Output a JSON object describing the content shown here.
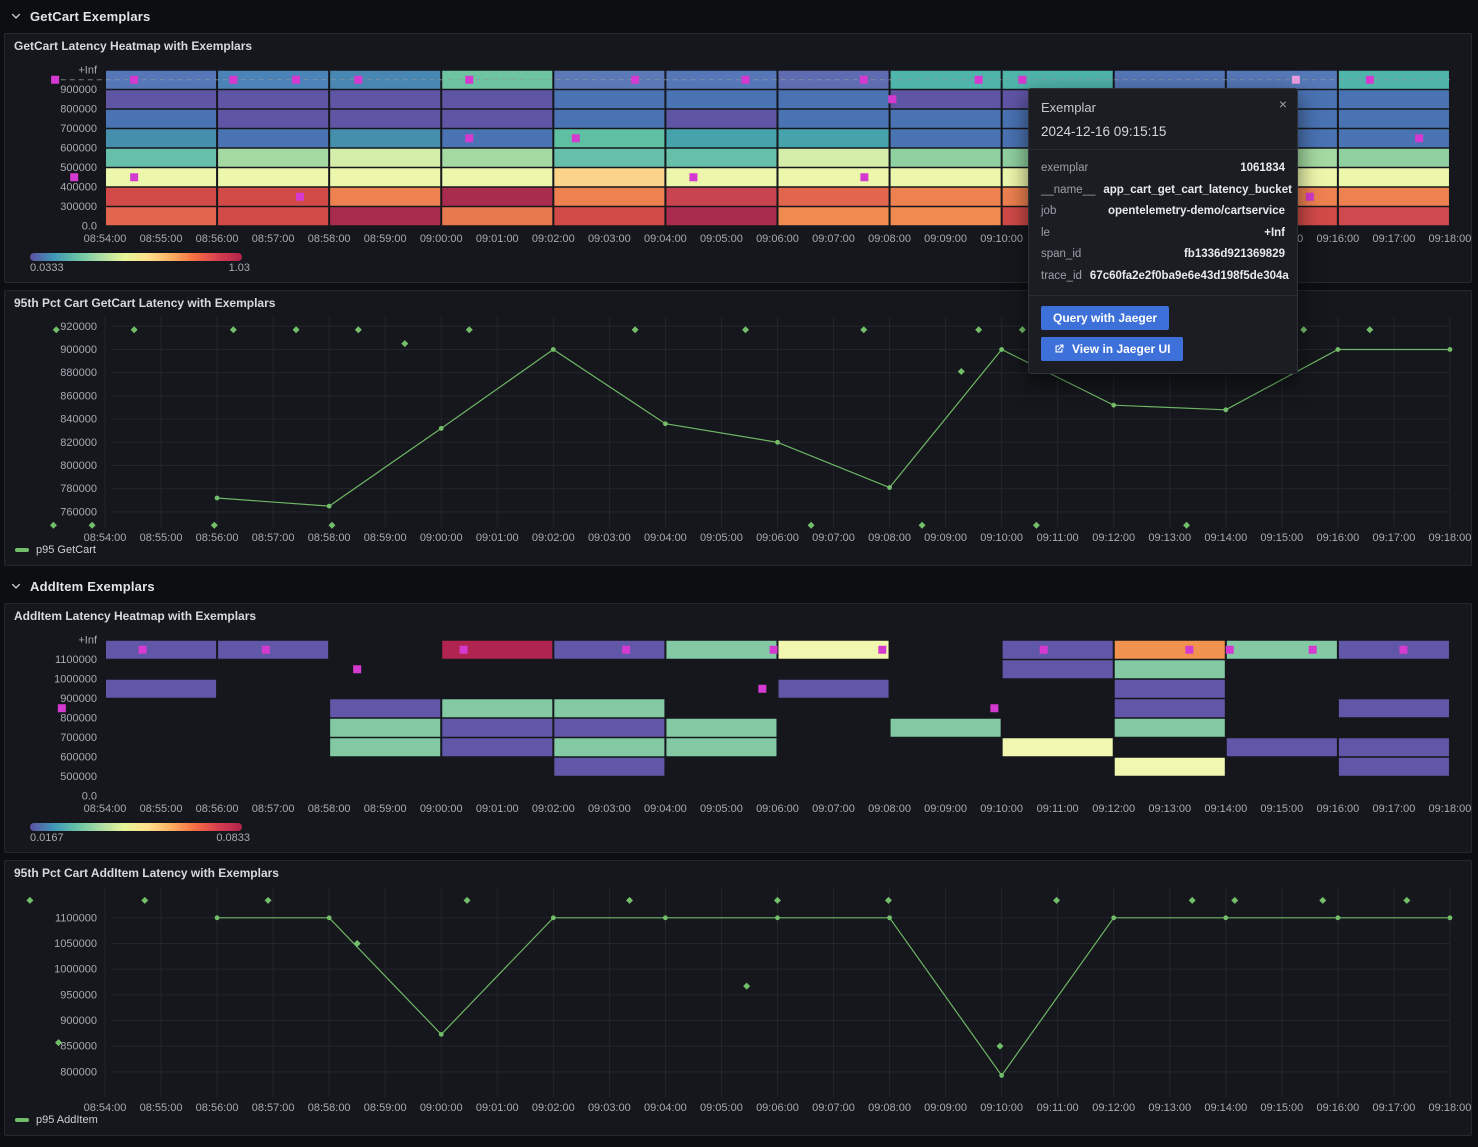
{
  "colors": {
    "accent_blue": "#3d71d9",
    "series_green": "#73bf69",
    "exemplar_magenta": "#d53ad0",
    "exemplar_selected": "#eb9fe4",
    "grid": "#23262d",
    "dashed_line": "#9299a3"
  },
  "sections": [
    {
      "title": "GetCart Exemplars"
    },
    {
      "title": "AddItem Exemplars"
    }
  ],
  "xticks": [
    "08:54:00",
    "08:55:00",
    "08:56:00",
    "08:57:00",
    "08:58:00",
    "08:59:00",
    "09:00:00",
    "09:01:00",
    "09:02:00",
    "09:03:00",
    "09:04:00",
    "09:05:00",
    "09:06:00",
    "09:07:00",
    "09:08:00",
    "09:09:00",
    "09:10:00",
    "09:11:00",
    "09:12:00",
    "09:13:00",
    "09:14:00",
    "09:15:00",
    "09:16:00",
    "09:17:00",
    "09:18:00"
  ],
  "tooltip": {
    "title": "Exemplar",
    "close": "×",
    "timestamp": "2024-12-16 09:15:15",
    "rows": [
      {
        "label": "exemplar",
        "value": "1061834"
      },
      {
        "label": "__name__",
        "value": "app_cart_get_cart_latency_bucket"
      },
      {
        "label": "job",
        "value": "opentelemetry-demo/cartservice"
      },
      {
        "label": "le",
        "value": "+Inf"
      },
      {
        "label": "span_id",
        "value": "fb1336d921369829"
      },
      {
        "label": "trace_id",
        "value": "67c60fa2e2f0ba9e6e43d198f5de304a"
      }
    ],
    "buttons": [
      {
        "label": "Query with Jaeger"
      },
      {
        "label": "View in Jaeger UI",
        "icon": "external-link-icon"
      }
    ]
  },
  "chart_data": [
    {
      "id": "hm-getcart",
      "type": "heatmap",
      "title": "GetCart Latency Heatmap with Exemplars",
      "y_tick_labels": [
        "+Inf",
        "900000",
        "800000",
        "700000",
        "600000",
        "500000",
        "400000",
        "300000",
        "0.0"
      ],
      "col_minutes": 2,
      "colorbar": {
        "min": "0.0333",
        "max": "1.03"
      },
      "cells": [
        [
          "#5577b8",
          "#4b82b8",
          "#4787b2",
          "#6dc4a0",
          "#5b79b6",
          "#5577b8",
          "#5f6cb2",
          "#4fb5ab",
          "#4fb5ab",
          "#5577b8",
          "#5578b8",
          "#4fb5ab"
        ],
        [
          "#5e55a5",
          "#5e55a5",
          "#5e55a5",
          "#5e55a5",
          "#4a73b3",
          "#4a73b3",
          "#4a73b3",
          "#5e55a5",
          "#5e55a5",
          "#5e55a5",
          "#4a73b3",
          "#4a73b3"
        ],
        [
          "#4a73b3",
          "#5e55a5",
          "#5e55a5",
          "#5e55a5",
          "#4a73b3",
          "#5e55a5",
          "#4a73b3",
          "#4a73b3",
          "#4a73b3",
          "#4a73b3",
          "#4a73b3",
          "#4a73b3"
        ],
        [
          "#458fad",
          "#4a73b3",
          "#458fad",
          "#4a73b3",
          "#5fc0a1",
          "#47a3ab",
          "#47a3ab",
          "#4a73b3",
          "#4a73b3",
          "#4a73b3",
          "#4a73b3",
          "#4a73b3"
        ],
        [
          "#66bfa8",
          "#a4d9a1",
          "#d4eda9",
          "#a4d9a1",
          "#66bfa8",
          "#66bfa8",
          "#d4eda9",
          "#8fd0a0",
          "#8fd0a0",
          "#a4d9a1",
          "#a4d9a1",
          "#8fd0a0"
        ],
        [
          "#edf7ac",
          "#edf7ac",
          "#edf7ac",
          "#edf7ac",
          "#fbd489",
          "#edf7ac",
          "#edf7ac",
          "#edf7ac",
          "#edf7ac",
          "#edf7ac",
          "#edf7ac",
          "#edf7ac"
        ],
        [
          "#d14a48",
          "#d14a48",
          "#ee8150",
          "#a92c4e",
          "#ee8150",
          "#c94451",
          "#e2654e",
          "#ee8150",
          "#ee8150",
          "#ee8150",
          "#ee8150",
          "#ee8150"
        ],
        [
          "#e2654e",
          "#d14a48",
          "#a92c4e",
          "#e8794e",
          "#d14a48",
          "#a92c4e",
          "#ef8b50",
          "#ef8b50",
          "#d14a48",
          "#d14a48",
          "#d14a48",
          "#ce4a4e"
        ]
      ],
      "dashed_row": 0.5,
      "exemplars": [
        {
          "t": -0.89,
          "r": 0.5
        },
        {
          "t": 0.52,
          "r": 0.5
        },
        {
          "t": 2.29,
          "r": 0.5
        },
        {
          "t": 3.41,
          "r": 0.5
        },
        {
          "t": 4.52,
          "r": 0.5
        },
        {
          "t": 6.5,
          "r": 0.5
        },
        {
          "t": 9.46,
          "r": 0.5
        },
        {
          "t": 11.43,
          "r": 0.5
        },
        {
          "t": 13.54,
          "r": 0.5
        },
        {
          "t": 15.59,
          "r": 0.5
        },
        {
          "t": 16.37,
          "r": 0.5
        },
        {
          "t": 22.57,
          "r": 0.5
        },
        {
          "t": -0.55,
          "r": 5.5
        },
        {
          "t": 0.52,
          "r": 5.5
        },
        {
          "t": 3.48,
          "r": 6.5
        },
        {
          "t": 6.5,
          "r": 3.5
        },
        {
          "t": 8.4,
          "r": 3.5
        },
        {
          "t": 10.5,
          "r": 5.5
        },
        {
          "t": 13.55,
          "r": 5.5
        },
        {
          "t": 14.05,
          "r": 1.5
        },
        {
          "t": 20.5,
          "r": 5.5
        },
        {
          "t": 21.5,
          "r": 6.5
        },
        {
          "t": 23.45,
          "r": 3.5
        }
      ],
      "selected_exemplar": {
        "t": 21.25,
        "r": 0.5
      }
    },
    {
      "id": "line-getcart",
      "type": "line",
      "title": "95th Pct Cart GetCart Latency with Exemplars",
      "legend": "p95 GetCart",
      "yticks": [
        760000,
        780000,
        800000,
        820000,
        840000,
        860000,
        880000,
        900000,
        920000
      ],
      "ylim": [
        747000,
        928000
      ],
      "x": [
        2,
        4,
        6,
        8,
        10,
        12,
        14,
        16,
        18,
        20,
        22,
        24
      ],
      "values": [
        772000,
        765000,
        832000,
        900000,
        836000,
        820000,
        781000,
        900000,
        852000,
        848000,
        900000,
        900000
      ],
      "exemplars": [
        {
          "t": -0.87,
          "v": 917000
        },
        {
          "t": 0.52,
          "v": 917000
        },
        {
          "t": 2.29,
          "v": 917000
        },
        {
          "t": 3.41,
          "v": 917000
        },
        {
          "t": 4.52,
          "v": 917000
        },
        {
          "t": 6.5,
          "v": 917000
        },
        {
          "t": 9.46,
          "v": 917000
        },
        {
          "t": 11.43,
          "v": 917000
        },
        {
          "t": 13.54,
          "v": 917000
        },
        {
          "t": 15.59,
          "v": 917000
        },
        {
          "t": 16.37,
          "v": 917000
        },
        {
          "t": 21.39,
          "v": 917000
        },
        {
          "t": 22.57,
          "v": 917000
        },
        {
          "t": 5.35,
          "v": 905000
        },
        {
          "t": 15.28,
          "v": 881000
        },
        {
          "t": -0.92,
          "v": 748500
        },
        {
          "t": -0.23,
          "v": 748500
        },
        {
          "t": 1.95,
          "v": 748500
        },
        {
          "t": 4.05,
          "v": 748500
        },
        {
          "t": 12.6,
          "v": 748500
        },
        {
          "t": 14.58,
          "v": 748500
        },
        {
          "t": 16.62,
          "v": 748500
        },
        {
          "t": 19.3,
          "v": 748500
        }
      ]
    },
    {
      "id": "hm-additem",
      "type": "heatmap",
      "title": "AddItem Latency Heatmap with Exemplars",
      "y_tick_labels": [
        "+Inf",
        "1100000",
        "1000000",
        "900000",
        "800000",
        "700000",
        "600000",
        "500000",
        "0.0"
      ],
      "col_minutes": 2,
      "colorbar": {
        "min": "0.0167",
        "max": "0.0833"
      },
      "cells": [
        [
          "#6157a8",
          "#6157a8",
          null,
          "#b02450",
          "#6157a8",
          "#82c9a4",
          "#f2f7b0",
          null,
          "#6157a8",
          "#f1934f",
          "#82c9a4",
          "#6157a8"
        ],
        [
          null,
          null,
          null,
          null,
          null,
          null,
          null,
          null,
          "#6157a8",
          "#82c9a4",
          null,
          null
        ],
        [
          "#6157a8",
          null,
          null,
          null,
          null,
          null,
          "#6157a8",
          null,
          null,
          "#6157a8",
          null,
          null
        ],
        [
          null,
          null,
          "#6157a8",
          "#82c9a4",
          "#82c9a4",
          null,
          null,
          null,
          null,
          "#6157a8",
          null,
          "#6157a8"
        ],
        [
          null,
          null,
          "#82c9a4",
          "#6157a8",
          "#6157a8",
          "#82c9a4",
          null,
          "#82c9a4",
          null,
          "#82c9a4",
          null,
          null
        ],
        [
          null,
          null,
          "#82c9a4",
          "#6157a8",
          "#82c9a4",
          "#82c9a4",
          null,
          null,
          "#f2f7b0",
          null,
          "#6157a8",
          "#6157a8"
        ],
        [
          null,
          null,
          null,
          null,
          "#6157a8",
          null,
          null,
          null,
          null,
          "#f2f7b0",
          null,
          "#6157a8"
        ],
        [
          null,
          null,
          null,
          null,
          null,
          null,
          null,
          null,
          null,
          null,
          null,
          null
        ]
      ],
      "dashed_row": null,
      "exemplars": [
        {
          "t": 0.67,
          "r": 0.5
        },
        {
          "t": 2.87,
          "r": 0.5
        },
        {
          "t": 4.5,
          "r": 1.5
        },
        {
          "t": -0.77,
          "r": 3.5
        },
        {
          "t": 6.4,
          "r": 0.5
        },
        {
          "t": 9.3,
          "r": 0.5
        },
        {
          "t": 11.93,
          "r": 0.5
        },
        {
          "t": 13.87,
          "r": 0.5
        },
        {
          "t": 11.73,
          "r": 2.5
        },
        {
          "t": 16.75,
          "r": 0.5
        },
        {
          "t": 19.35,
          "r": 0.5
        },
        {
          "t": 20.07,
          "r": 0.5
        },
        {
          "t": 21.55,
          "r": 0.5
        },
        {
          "t": 23.17,
          "r": 0.5
        },
        {
          "t": 15.87,
          "r": 3.5
        }
      ],
      "selected_exemplar": null
    },
    {
      "id": "line-additem",
      "type": "line",
      "title": "95th Pct Cart AddItem Latency with Exemplars",
      "legend": "p95 AddItem",
      "yticks": [
        800000,
        850000,
        900000,
        950000,
        1000000,
        1050000,
        1100000
      ],
      "ylim": [
        751000,
        1160000
      ],
      "x": [
        2,
        4,
        6,
        8,
        10,
        12,
        14,
        16,
        18,
        20,
        22,
        24
      ],
      "values": [
        1100000,
        1100000,
        873000,
        1100000,
        1100000,
        1100000,
        1100000,
        793000,
        1100000,
        1100000,
        1100000,
        1100000
      ],
      "exemplars": [
        {
          "t": -1.34,
          "v": 1134000
        },
        {
          "t": 0.71,
          "v": 1134000
        },
        {
          "t": 2.91,
          "v": 1134000
        },
        {
          "t": 6.46,
          "v": 1134000
        },
        {
          "t": 9.36,
          "v": 1134000
        },
        {
          "t": 12.0,
          "v": 1134000
        },
        {
          "t": 13.98,
          "v": 1134000
        },
        {
          "t": 16.98,
          "v": 1134000
        },
        {
          "t": 19.4,
          "v": 1134000
        },
        {
          "t": 20.16,
          "v": 1134000
        },
        {
          "t": 21.73,
          "v": 1134000
        },
        {
          "t": 23.23,
          "v": 1134000
        },
        {
          "t": -0.83,
          "v": 857000
        },
        {
          "t": 4.5,
          "v": 1050000
        },
        {
          "t": 11.45,
          "v": 967000
        },
        {
          "t": 15.97,
          "v": 850000
        }
      ]
    }
  ]
}
